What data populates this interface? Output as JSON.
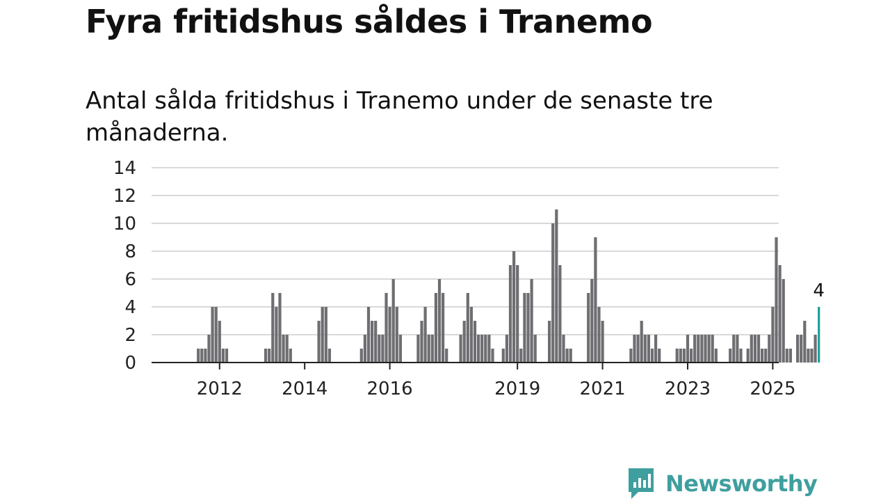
{
  "header": {
    "title": "Fyra fritidshus såldes i Tranemo",
    "subtitle": "Antal sålda fritidshus i Tranemo under de senaste tre månaderna."
  },
  "brand": {
    "name": "Newsworthy",
    "icon": "newsworthy-logo-icon",
    "color": "#3f9f9e"
  },
  "colors": {
    "bar": "#6e6e72",
    "highlight": "#1a9e9a",
    "grid": "#d9d9d9",
    "axis": "#222222"
  },
  "chart_data": {
    "type": "bar",
    "xlabel": "",
    "ylabel": "",
    "ylim": [
      0,
      14
    ],
    "yticks": [
      0,
      2,
      4,
      6,
      8,
      10,
      12,
      14
    ],
    "xticks": [
      "2012",
      "2014",
      "2016",
      "2019",
      "2021",
      "2023",
      "2025"
    ],
    "grid": true,
    "start_year": 2011.0,
    "highlight": {
      "value": 4,
      "label": "4"
    },
    "values": [
      0,
      0,
      0,
      0,
      0,
      0,
      0,
      0,
      0,
      0,
      0,
      0,
      1,
      1,
      1,
      2,
      4,
      4,
      3,
      1,
      1,
      0,
      0,
      0,
      0,
      0,
      0,
      0,
      0,
      0,
      0,
      1,
      1,
      5,
      4,
      5,
      2,
      2,
      1,
      0,
      0,
      0,
      0,
      0,
      0,
      0,
      3,
      4,
      4,
      1,
      0,
      0,
      0,
      0,
      0,
      0,
      0,
      0,
      1,
      2,
      4,
      3,
      3,
      2,
      2,
      5,
      4,
      6,
      4,
      2,
      0,
      0,
      0,
      0,
      2,
      3,
      4,
      2,
      2,
      5,
      6,
      5,
      1,
      0,
      0,
      0,
      2,
      3,
      5,
      4,
      3,
      2,
      2,
      2,
      2,
      1,
      0,
      0,
      1,
      2,
      7,
      8,
      7,
      1,
      5,
      5,
      6,
      2,
      0,
      0,
      0,
      3,
      10,
      11,
      7,
      2,
      1,
      1,
      0,
      0,
      0,
      0,
      5,
      6,
      9,
      4,
      3,
      0,
      0,
      0,
      0,
      0,
      0,
      0,
      1,
      2,
      2,
      3,
      2,
      2,
      1,
      2,
      1,
      0,
      0,
      0,
      0,
      1,
      1,
      1,
      2,
      1,
      2,
      2,
      2,
      2,
      2,
      2,
      1,
      0,
      0,
      0,
      1,
      2,
      2,
      1,
      0,
      1,
      2,
      2,
      2,
      1,
      1,
      2,
      4,
      9,
      7,
      6,
      1,
      1,
      0,
      2,
      2,
      3,
      1,
      1,
      2,
      4
    ]
  }
}
